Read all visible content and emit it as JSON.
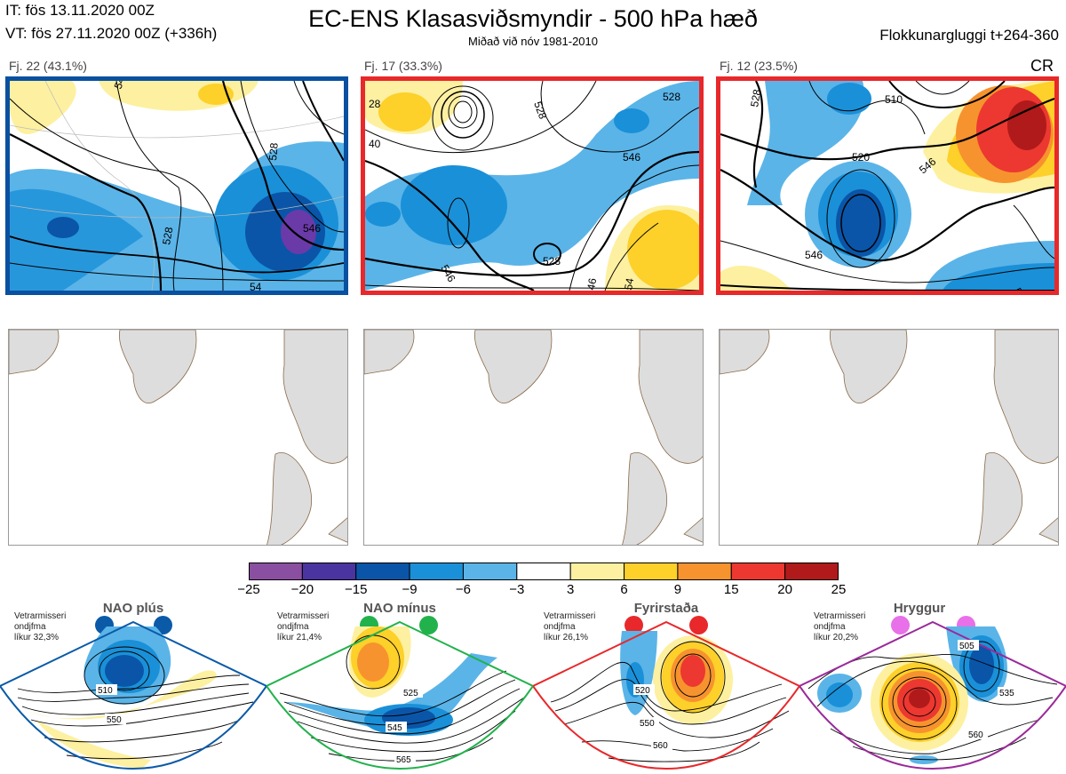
{
  "header": {
    "it": "IT: fös 13.11.2020 00Z",
    "vt": "VT: fös 27.11.2020 00Z  (+336h)",
    "title": "EC-ENS Klasasviðsmyndir - 500 hPa hæð",
    "subtitle": "Miðað við nóv 1981-2010",
    "window": "Flokkunargluggi t+264-360"
  },
  "clusters": [
    {
      "label": "Fj. 22 (43.1%)",
      "frame_color": "#0a50a0",
      "contours": [
        "528",
        "528",
        "546",
        "546",
        "54"
      ]
    },
    {
      "label": "Fj. 17 (33.3%)",
      "frame_color": "#e8282a",
      "contours": [
        "28",
        "40",
        "528",
        "528",
        "546",
        "546",
        "528",
        "46",
        "54"
      ]
    },
    {
      "label": "Fj. 12 (23.5%)",
      "frame_color": "#e8282a",
      "contours": [
        "528",
        "510",
        "520",
        "546",
        "546",
        "546"
      ],
      "tag": "CR"
    }
  ],
  "colorbar": {
    "ticks": [
      "−25",
      "−20",
      "−15",
      "−9",
      "−6",
      "−3",
      "3",
      "6",
      "9",
      "15",
      "20",
      "25"
    ],
    "colors": [
      "#8a4fa0",
      "#4a35a0",
      "#0a55a8",
      "#1a90d8",
      "#5ab4e8",
      "#ffffff",
      "#fdf0a0",
      "#fdd02a",
      "#f7932e",
      "#ec3830",
      "#b01a1a"
    ]
  },
  "regimes": [
    {
      "name": "NAO plús",
      "note": [
        "Vetrarmisseri",
        "ondjfma",
        "líkur 32,3%"
      ],
      "color": "#0a5aa8",
      "contours": [
        "510",
        "550"
      ]
    },
    {
      "name": "NAO mínus",
      "note": [
        "Vetrarmisseri",
        "ondjfma",
        "líkur 21,4%"
      ],
      "color": "#22b24c",
      "contours": [
        "525",
        "545",
        "565"
      ]
    },
    {
      "name": "Fyrirstaða",
      "note": [
        "Vetrarmisseri",
        "ondjfma",
        "líkur 26,1%"
      ],
      "color": "#e8282a",
      "contours": [
        "520",
        "550",
        "560"
      ]
    },
    {
      "name": "Hryggur",
      "note": [
        "Vetrarmisseri",
        "ondjfma",
        "líkur 20,2%"
      ],
      "color": "#e870e8",
      "contours": [
        "505",
        "535",
        "560"
      ]
    }
  ]
}
